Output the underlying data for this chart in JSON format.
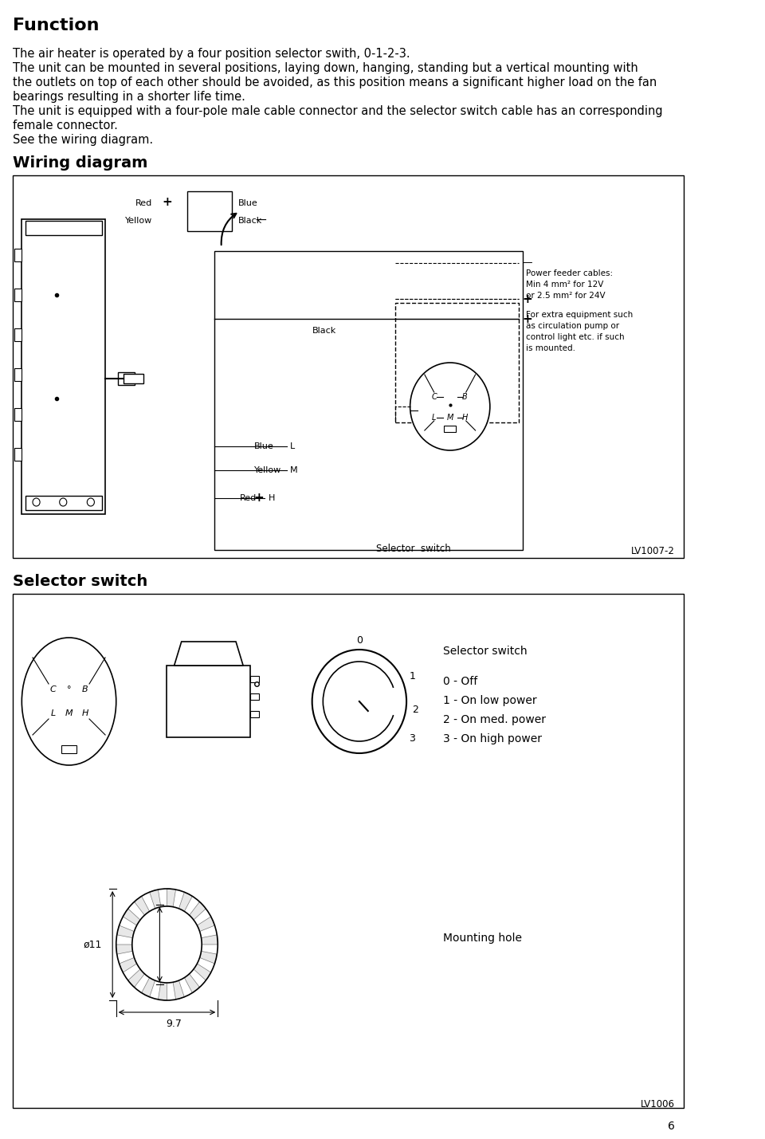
{
  "title_function": "Function",
  "body_text": [
    "The air heater is operated by a four position selector swith, 0-1-2-3.",
    "The unit can be mounted in several positions, laying down, hanging, standing but a vertical mounting with",
    "the outlets on top of each other should be avoided, as this position means a significant higher load on the fan",
    "bearings resulting in a shorter life time.",
    "The unit is equipped with a four-pole male cable connector and the selector switch cable has an corresponding",
    "female connector.",
    "See the wiring diagram."
  ],
  "wiring_heading": "Wiring diagram",
  "selector_heading": "Selector switch",
  "lv1007_label": "LV1007-2",
  "lv1006_label": "LV1006",
  "page_number": "6",
  "bg_color": "#ffffff",
  "box_color": "#000000",
  "text_color": "#000000",
  "diagram_bg": "#ffffff"
}
